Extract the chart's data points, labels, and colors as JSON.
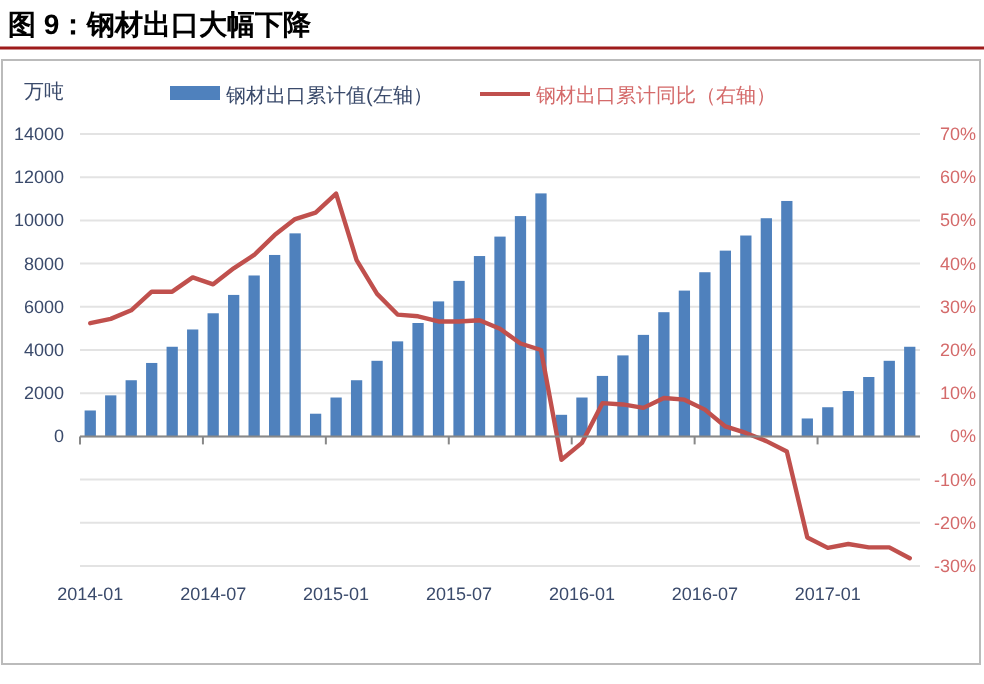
{
  "chart_data": {
    "type": "bar",
    "title": "图 9：钢材出口大幅下降",
    "ylabel": "万吨",
    "categories": [
      "2014-01",
      null,
      null,
      null,
      null,
      null,
      "2014-07",
      null,
      null,
      null,
      null,
      null,
      "2015-01",
      null,
      null,
      null,
      null,
      null,
      "2015-07",
      null,
      null,
      null,
      null,
      null,
      "2016-01",
      null,
      null,
      null,
      null,
      null,
      "2016-07",
      null,
      null,
      null,
      null,
      null,
      "2017-01",
      null,
      null,
      null,
      null
    ],
    "series": [
      {
        "name": "钢材出口累计值(左轴）",
        "color": "#4f81bd",
        "values": [
          1200,
          1900,
          2600,
          3400,
          4150,
          4950,
          5700,
          6550,
          7450,
          8400,
          9400,
          1050,
          1800,
          2600,
          3500,
          4400,
          5250,
          6250,
          7200,
          8350,
          9250,
          10200,
          11250,
          1000,
          1800,
          2800,
          3750,
          4700,
          5750,
          6750,
          7600,
          8600,
          9300,
          10100,
          10900,
          830,
          1350,
          2100,
          2750,
          3500,
          4150
        ]
      },
      {
        "name": "钢材出口累计同比（右轴）",
        "type": "line",
        "axis": "y2",
        "color": "#c0504d",
        "values": [
          26.2,
          27.2,
          29.2,
          33.5,
          33.5,
          36.8,
          35.2,
          38.9,
          42,
          46.6,
          50.3,
          51.8,
          56.2,
          40.8,
          33,
          28.2,
          27.8,
          26.6,
          26.6,
          26.9,
          24.9,
          21.5,
          20,
          -5.4,
          -1.5,
          7.7,
          7.4,
          6.6,
          8.9,
          8.5,
          6.2,
          2.3,
          0.8,
          -1.1,
          -3.5,
          -23.4,
          -25.8,
          -24.9,
          -25.7,
          -25.7,
          -28.2
        ]
      }
    ],
    "ylim": [
      -6000,
      14000
    ],
    "yticks": [
      0,
      2000,
      4000,
      6000,
      8000,
      10000,
      12000,
      14000
    ],
    "y2lim": [
      -30,
      70
    ],
    "y2ticks": [
      {
        "value": -30,
        "label": "-30%"
      },
      {
        "value": -20,
        "label": "-20%"
      },
      {
        "value": -10,
        "label": "-10%"
      },
      {
        "value": 0,
        "label": "0%"
      },
      {
        "value": 10,
        "label": "10%"
      },
      {
        "value": 20,
        "label": "20%"
      },
      {
        "value": 30,
        "label": "30%"
      },
      {
        "value": 40,
        "label": "40%"
      },
      {
        "value": 50,
        "label": "50%"
      },
      {
        "value": 60,
        "label": "60%"
      },
      {
        "value": 70,
        "label": "70%"
      }
    ],
    "grid": "y2",
    "legend": "top"
  }
}
